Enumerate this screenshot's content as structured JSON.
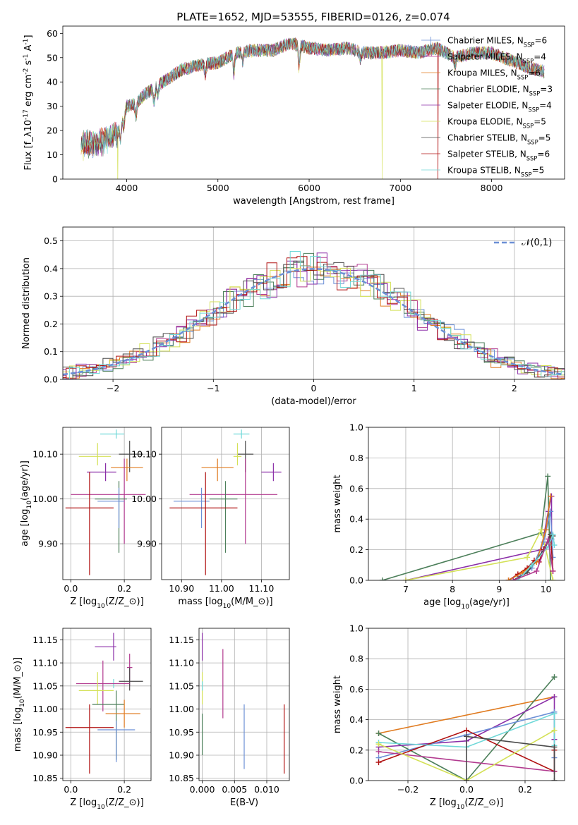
{
  "figure_title": "PLATE=1652, MJD=53555, FIBERID=0126, z=0.074",
  "colors": {
    "Chabrier MILES": "#6b8fd6",
    "Salpeter MILES": "#b23a8f",
    "Kroupa MILES": "#e07b20",
    "Chabrier ELODIE": "#4c7f5a",
    "Salpeter ELODIE": "#8b2fa8",
    "Kroupa ELODIE": "#d4e157",
    "Chabrier STELIB": "#4a4a4a",
    "Salpeter STELIB": "#b01010",
    "Kroupa STELIB": "#6fd8d8",
    "normal_curve": "#6b8fd6",
    "pink": "#e088c0"
  },
  "chart_data": [
    {
      "id": "spectrum",
      "type": "line",
      "xlabel": "wavelength [Angstrom, rest frame]",
      "ylabel": "Flux [f$_\\lambda$10$^{-17}$ erg cm$^{-2}$ s$^{-1}$ A$^{-1}$]",
      "xlim": [
        3300,
        8800
      ],
      "ylim": [
        0,
        63
      ],
      "xticks": [
        4000,
        5000,
        6000,
        7000,
        8000
      ],
      "yticks": [
        0,
        10,
        20,
        30,
        40,
        50,
        60
      ],
      "legend_position": "top-right",
      "continuum": [
        [
          3500,
          14
        ],
        [
          3700,
          15
        ],
        [
          3900,
          19
        ],
        [
          4000,
          30
        ],
        [
          4100,
          31
        ],
        [
          4200,
          35
        ],
        [
          4400,
          40
        ],
        [
          4600,
          45
        ],
        [
          4800,
          47
        ],
        [
          5000,
          48
        ],
        [
          5200,
          52
        ],
        [
          5400,
          53
        ],
        [
          5600,
          53
        ],
        [
          5800,
          56
        ],
        [
          6000,
          54
        ],
        [
          6200,
          53
        ],
        [
          6400,
          54
        ],
        [
          6600,
          52
        ],
        [
          6800,
          52
        ],
        [
          7000,
          53
        ],
        [
          7200,
          52
        ],
        [
          7400,
          54
        ],
        [
          7600,
          50
        ],
        [
          7800,
          52
        ],
        [
          8000,
          52
        ],
        [
          8200,
          49
        ],
        [
          8400,
          46
        ],
        [
          8600,
          44
        ]
      ],
      "series": [
        {
          "name": "Chabrier MILES, N$_{SSP}$=6"
        },
        {
          "name": "Salpeter MILES, N$_{SSP}$=4"
        },
        {
          "name": "Kroupa MILES, N$_{SSP}$=6"
        },
        {
          "name": "Chabrier ELODIE, N$_{SSP}$=3"
        },
        {
          "name": "Salpeter ELODIE, N$_{SSP}$=4"
        },
        {
          "name": "Kroupa ELODIE, N$_{SSP}$=5"
        },
        {
          "name": "Chabrier STELIB, N$_{SSP}$=5"
        },
        {
          "name": "Salpeter STELIB, N$_{SSP}$=6"
        },
        {
          "name": "Kroupa STELIB, N$_{SSP}$=5"
        }
      ],
      "dropouts": [
        [
          3900,
          "Kroupa ELODIE"
        ],
        [
          6800,
          "Kroupa ELODIE"
        ],
        [
          7410,
          "Salpeter STELIB"
        ]
      ]
    },
    {
      "id": "residuals",
      "type": "histogram",
      "xlabel": "(data-model)/error",
      "ylabel": "Normed distribution",
      "xlim": [
        -2.5,
        2.5
      ],
      "ylim": [
        0,
        0.55
      ],
      "xticks": [
        -2,
        -1,
        0,
        1,
        2
      ],
      "yticks": [
        0.0,
        0.1,
        0.2,
        0.3,
        0.4,
        0.5
      ],
      "legend_position": "top-right",
      "reference_curve": {
        "name": "$\\mathcal{N}(0,1)$",
        "mean": 0,
        "sd": 1
      }
    },
    {
      "id": "age_vs_Z",
      "type": "errorbar",
      "xlabel": "Z [log$_{10}$($Z/Z_\\odot$)]",
      "ylabel": "age  [log$_{10}$($age/yr$)]",
      "xlim": [
        -0.03,
        0.3
      ],
      "ylim": [
        9.82,
        10.16
      ],
      "xticks": [
        0.0,
        0.2
      ],
      "yticks": [
        9.9,
        10.0,
        10.1
      ],
      "points": [
        {
          "series": "Kroupa STELIB",
          "x": 0.17,
          "y": 10.145,
          "xerr": [
            0.06,
            0.03
          ],
          "yerr": [
            0.01,
            0.01
          ]
        },
        {
          "series": "Chabrier STELIB",
          "x": 0.22,
          "y": 10.1,
          "xerr": [
            0.04,
            0.05
          ],
          "yerr": [
            0.04,
            0.03
          ]
        },
        {
          "series": "Kroupa ELODIE",
          "x": 0.1,
          "y": 10.095,
          "xerr": [
            0.07,
            0.05
          ],
          "yerr": [
            0.02,
            0.03
          ]
        },
        {
          "series": "Kroupa MILES",
          "x": 0.21,
          "y": 10.07,
          "xerr": [
            0.06,
            0.06
          ],
          "yerr": [
            0.03,
            0.02
          ]
        },
        {
          "series": "Salpeter ELODIE",
          "x": 0.13,
          "y": 10.06,
          "xerr": [
            0.07,
            0.04
          ],
          "yerr": [
            0.02,
            0.02
          ]
        },
        {
          "series": "Salpeter MILES",
          "x": 0.2,
          "y": 10.01,
          "xerr": [
            0.2,
            0.08
          ],
          "yerr": [
            0.11,
            0.08
          ]
        },
        {
          "series": "Chabrier ELODIE",
          "x": 0.18,
          "y": 10.0,
          "xerr": [
            0.09,
            0.03
          ],
          "yerr": [
            0.12,
            0.04
          ]
        },
        {
          "series": "Chabrier MILES",
          "x": 0.18,
          "y": 9.995,
          "xerr": [
            0.08,
            0.02
          ],
          "yerr": [
            0.06,
            0.03
          ]
        },
        {
          "series": "Salpeter STELIB",
          "x": 0.07,
          "y": 9.98,
          "xerr": [
            0.09,
            0.09
          ],
          "yerr": [
            0.15,
            0.08
          ]
        }
      ]
    },
    {
      "id": "age_vs_mass",
      "type": "errorbar",
      "xlabel": "mass [log$_{10}$($M/M_\\odot$)]",
      "ylabel": "",
      "xlim": [
        10.85,
        11.17
      ],
      "ylim": [
        9.82,
        10.16
      ],
      "xticks": [
        10.9,
        11.0,
        11.1
      ],
      "yticks": [
        9.9,
        10.0,
        10.1
      ],
      "points": [
        {
          "series": "Kroupa STELIB",
          "x": 11.05,
          "y": 10.145,
          "xerr": [
            0.02,
            0.02
          ],
          "yerr": [
            0.01,
            0.01
          ]
        },
        {
          "series": "Chabrier STELIB",
          "x": 11.06,
          "y": 10.1,
          "xerr": [
            0.02,
            0.02
          ],
          "yerr": [
            0.04,
            0.03
          ]
        },
        {
          "series": "Kroupa ELODIE",
          "x": 11.04,
          "y": 10.095,
          "xerr": [
            0.01,
            0.01
          ],
          "yerr": [
            0.02,
            0.03
          ]
        },
        {
          "series": "Kroupa MILES",
          "x": 10.99,
          "y": 10.07,
          "xerr": [
            0.04,
            0.04
          ],
          "yerr": [
            0.03,
            0.02
          ]
        },
        {
          "series": "Salpeter ELODIE",
          "x": 11.13,
          "y": 10.06,
          "xerr": [
            0.03,
            0.02
          ],
          "yerr": [
            0.02,
            0.02
          ]
        },
        {
          "series": "Salpeter MILES",
          "x": 11.06,
          "y": 10.01,
          "xerr": [
            0.14,
            0.08
          ],
          "yerr": [
            0.11,
            0.08
          ]
        },
        {
          "series": "Chabrier ELODIE",
          "x": 11.01,
          "y": 10.0,
          "xerr": [
            0.04,
            0.03
          ],
          "yerr": [
            0.12,
            0.04
          ]
        },
        {
          "series": "Chabrier MILES",
          "x": 10.95,
          "y": 9.995,
          "xerr": [
            0.07,
            0.02
          ],
          "yerr": [
            0.06,
            0.03
          ]
        },
        {
          "series": "Salpeter STELIB",
          "x": 10.96,
          "y": 9.98,
          "xerr": [
            0.09,
            0.08
          ],
          "yerr": [
            0.15,
            0.08
          ]
        }
      ]
    },
    {
      "id": "mass_weight_vs_age",
      "type": "line",
      "xlabel": "age  [log$_{10}$($age/yr$)]",
      "ylabel": "mass weight",
      "xlim": [
        6.2,
        10.4
      ],
      "ylim": [
        0,
        1.0
      ],
      "xticks": [
        7,
        8,
        9,
        10
      ],
      "yticks": [
        0.0,
        0.2,
        0.4,
        0.6,
        0.8,
        1.0
      ],
      "series": [
        {
          "series": "Chabrier ELODIE",
          "x": [
            6.5,
            9.9,
            10.04,
            10.1
          ],
          "y": [
            0.0,
            0.31,
            0.68,
            0.0
          ]
        },
        {
          "series": "Salpeter ELODIE",
          "x": [
            7.0,
            9.9,
            10.05,
            10.12,
            10.12
          ],
          "y": [
            0.0,
            0.2,
            0.45,
            0.55,
            0.27
          ]
        },
        {
          "series": "Kroupa ELODIE",
          "x": [
            7.0,
            9.6,
            9.9,
            10.15
          ],
          "y": [
            0.0,
            0.15,
            0.33,
            0.0
          ]
        },
        {
          "series": "Chabrier MILES",
          "x": [
            9.3,
            9.7,
            9.95,
            10.1,
            10.15
          ],
          "y": [
            0.0,
            0.08,
            0.25,
            0.45,
            0.15
          ]
        },
        {
          "series": "Salpeter STELIB",
          "x": [
            9.2,
            9.4,
            9.6,
            9.75,
            9.85,
            9.95,
            10.1,
            10.15
          ],
          "y": [
            0.0,
            0.04,
            0.08,
            0.13,
            0.12,
            0.2,
            0.3,
            0.06
          ]
        },
        {
          "series": "Kroupa MILES",
          "x": [
            9.2,
            9.5,
            9.8,
            10.0,
            10.1
          ],
          "y": [
            0.0,
            0.05,
            0.12,
            0.33,
            0.55
          ]
        },
        {
          "series": "Chabrier STELIB",
          "x": [
            9.3,
            9.6,
            10.0,
            10.1,
            10.15
          ],
          "y": [
            0.0,
            0.05,
            0.22,
            0.3,
            0.29
          ]
        },
        {
          "series": "Kroupa STELIB",
          "x": [
            9.4,
            9.7,
            10.05,
            10.15,
            10.18
          ],
          "y": [
            0.0,
            0.1,
            0.22,
            0.3,
            0.23
          ]
        },
        {
          "series": "Salpeter MILES",
          "x": [
            9.3,
            9.8,
            10.05,
            10.15
          ],
          "y": [
            0.0,
            0.06,
            0.27,
            0.06
          ]
        }
      ]
    },
    {
      "id": "mass_vs_Z",
      "type": "errorbar",
      "xlabel": "Z [log$_{10}$($Z/Z_\\odot$)]",
      "ylabel": "mass [log$_{10}$($M/M_\\odot$)]",
      "xlim": [
        -0.03,
        0.3
      ],
      "ylim": [
        10.845,
        11.175
      ],
      "xticks": [
        0.0,
        0.2
      ],
      "yticks": [
        10.85,
        10.9,
        10.95,
        11.0,
        11.05,
        11.1,
        11.15
      ],
      "points": [
        {
          "series": "Salpeter ELODIE",
          "x": 0.16,
          "y": 11.135,
          "xerr": [
            0.07,
            0.01
          ],
          "yerr": [
            0.03,
            0.03
          ]
        },
        {
          "series": "Salpeter MILES",
          "x": 0.22,
          "y": 11.09,
          "xerr": [
            0.01,
            0.01
          ],
          "yerr": [
            0.04,
            0.03
          ]
        },
        {
          "series": "Chabrier STELIB",
          "x": 0.22,
          "y": 11.06,
          "xerr": [
            0.04,
            0.05
          ],
          "yerr": [
            0.02,
            0.03
          ]
        },
        {
          "series": "Kroupa STELIB",
          "x": 0.16,
          "y": 11.055,
          "xerr": [
            0.04,
            0.04
          ],
          "yerr": [
            0.01,
            0.01
          ]
        },
        {
          "series": "Salpeter MILES",
          "x": 0.12,
          "y": 11.055,
          "xerr": [
            0.1,
            0.1
          ],
          "yerr": [
            0.06,
            0.05
          ]
        },
        {
          "series": "Kroupa ELODIE",
          "x": 0.1,
          "y": 11.04,
          "xerr": [
            0.07,
            0.06
          ],
          "yerr": [
            0.03,
            0.04
          ]
        },
        {
          "series": "Chabrier ELODIE",
          "x": 0.17,
          "y": 11.01,
          "xerr": [
            0.09,
            0.03
          ],
          "yerr": [
            0.12,
            0.03
          ]
        },
        {
          "series": "Kroupa MILES",
          "x": 0.2,
          "y": 10.99,
          "xerr": [
            0.07,
            0.06
          ],
          "yerr": [
            0.03,
            0.03
          ]
        },
        {
          "series": "Chabrier MILES",
          "x": 0.17,
          "y": 10.955,
          "xerr": [
            0.07,
            0.07
          ],
          "yerr": [
            0.07,
            0.02
          ]
        },
        {
          "series": "Salpeter STELIB",
          "x": 0.07,
          "y": 10.96,
          "xerr": [
            0.09,
            0.09
          ],
          "yerr": [
            0.1,
            0.05
          ]
        }
      ]
    },
    {
      "id": "mass_vs_ebv",
      "type": "errorbar",
      "xlabel": "E(B-V)",
      "ylabel": "",
      "xlim": [
        -0.0005,
        0.0135
      ],
      "ylim": [
        10.845,
        11.175
      ],
      "xticks": [
        0.0,
        0.005,
        0.01
      ],
      "xticklabels": [
        "0.000",
        "0.005",
        "0.010"
      ],
      "yticks": [
        10.85,
        10.9,
        10.95,
        11.0,
        11.05,
        11.1,
        11.15
      ],
      "points": [
        {
          "series": "Salpeter ELODIE",
          "x": 0.0,
          "y": 11.135,
          "yerr": [
            0.03,
            0.03
          ]
        },
        {
          "series": "Kroupa ELODIE",
          "x": 0.0,
          "y": 11.04,
          "yerr": [
            0.03,
            0.04
          ]
        },
        {
          "series": "Kroupa STELIB",
          "x": 0.0,
          "y": 11.05,
          "yerr": [
            0.01,
            0.01
          ]
        },
        {
          "series": "Chabrier ELODIE",
          "x": 0.0,
          "y": 10.95,
          "yerr": [
            0.05,
            0.04
          ]
        },
        {
          "series": "Salpeter MILES",
          "x": 0.0032,
          "y": 11.05,
          "yerr": [
            0.07,
            0.08
          ]
        },
        {
          "series": "Chabrier MILES",
          "x": 0.0065,
          "y": 10.94,
          "yerr": [
            0.07,
            0.07
          ]
        },
        {
          "series": "Salpeter STELIB",
          "x": 0.0127,
          "y": 10.94,
          "yerr": [
            0.08,
            0.07
          ]
        }
      ]
    },
    {
      "id": "mass_weight_vs_Z",
      "type": "line",
      "xlabel": "Z [log$_{10}$($Z/Z_\\odot$)]",
      "ylabel": "mass weight",
      "xlim": [
        -0.335,
        0.335
      ],
      "ylim": [
        0,
        1.0
      ],
      "xticks": [
        -0.2,
        0.0,
        0.2
      ],
      "yticks": [
        0.0,
        0.2,
        0.4,
        0.6,
        0.8,
        1.0
      ],
      "series": [
        {
          "series": "Kroupa MILES",
          "x": [
            -0.3,
            0.3
          ],
          "y": [
            0.31,
            0.55
          ]
        },
        {
          "series": "Chabrier ELODIE",
          "x": [
            -0.3,
            0.0,
            0.3
          ],
          "y": [
            0.31,
            0.0,
            0.68
          ]
        },
        {
          "series": "Salpeter ELODIE",
          "x": [
            -0.3,
            0.0,
            0.3,
            0.3
          ],
          "y": [
            0.22,
            0.26,
            0.55,
            0.27
          ]
        },
        {
          "series": "Chabrier MILES",
          "x": [
            -0.3,
            0.0,
            0.3,
            0.3
          ],
          "y": [
            0.15,
            0.3,
            0.45,
            0.15
          ]
        },
        {
          "series": "Salpeter STELIB",
          "x": [
            -0.3,
            0.0,
            0.3,
            0.3
          ],
          "y": [
            0.12,
            0.33,
            0.06,
            0.2
          ]
        },
        {
          "series": "Kroupa STELIB",
          "x": [
            -0.3,
            0.0,
            0.3,
            0.3
          ],
          "y": [
            0.25,
            0.22,
            0.44,
            0.23
          ]
        },
        {
          "series": "Salpeter MILES",
          "x": [
            -0.3,
            0.3
          ],
          "y": [
            0.19,
            0.06
          ]
        },
        {
          "series": "Kroupa ELODIE",
          "x": [
            -0.3,
            0.0,
            0.3
          ],
          "y": [
            0.24,
            0.0,
            0.33
          ]
        },
        {
          "series": "Chabrier STELIB",
          "x": [
            0.0,
            0.0,
            0.3,
            0.3
          ],
          "y": [
            0.0,
            0.29,
            0.22,
            0.0
          ]
        }
      ]
    }
  ]
}
